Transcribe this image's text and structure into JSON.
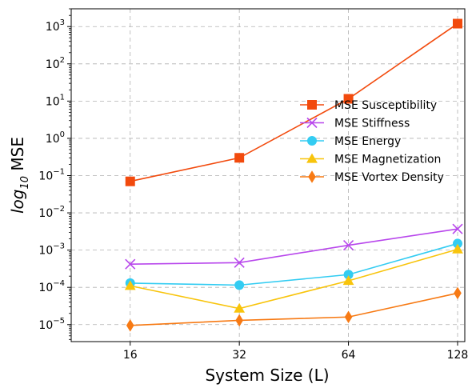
{
  "chart_data": {
    "type": "line",
    "title": "",
    "xlabel": "System Size (L)",
    "ylabel_prefix": "log",
    "ylabel_sub": "10",
    "ylabel_suffix": " MSE",
    "y_scale": "log",
    "grid": true,
    "legend_position": "center-right",
    "x": [
      16,
      32,
      64,
      128
    ],
    "xticks": [
      "16",
      "32",
      "64",
      "128"
    ],
    "xlim": [
      11,
      134
    ],
    "ylim": [
      3.5e-06,
      3000.0
    ],
    "yticks": [
      {
        "value": 1e-05,
        "base": "10",
        "exp": "−5"
      },
      {
        "value": 0.0001,
        "base": "10",
        "exp": "−4"
      },
      {
        "value": 0.001,
        "base": "10",
        "exp": "−3"
      },
      {
        "value": 0.01,
        "base": "10",
        "exp": "−2"
      },
      {
        "value": 0.1,
        "base": "10",
        "exp": "−1"
      },
      {
        "value": 1.0,
        "base": "10",
        "exp": "0"
      },
      {
        "value": 10.0,
        "base": "10",
        "exp": "1"
      },
      {
        "value": 100.0,
        "base": "10",
        "exp": "2"
      },
      {
        "value": 1000.0,
        "base": "10",
        "exp": "3"
      }
    ],
    "series": [
      {
        "name": "MSE Susceptibility",
        "color": "#f24a0d",
        "marker": "square",
        "values": [
          0.07,
          0.3,
          11.5,
          1200
        ]
      },
      {
        "name": "MSE Stiffness",
        "color": "#b847ec",
        "marker": "x",
        "values": [
          0.00042,
          0.00046,
          0.00135,
          0.0037
        ]
      },
      {
        "name": "MSE Energy",
        "color": "#33ccf2",
        "marker": "circle",
        "values": [
          0.00013,
          0.000115,
          0.00022,
          0.0015
        ]
      },
      {
        "name": "MSE Magnetization",
        "color": "#f8c40c",
        "marker": "triangle",
        "values": [
          0.00011,
          2.7e-05,
          0.00015,
          0.00105
        ]
      },
      {
        "name": "MSE Vortex Density",
        "color": "#f77a14",
        "marker": "diamond",
        "values": [
          9.5e-06,
          1.3e-05,
          1.6e-05,
          7e-05
        ]
      }
    ]
  }
}
